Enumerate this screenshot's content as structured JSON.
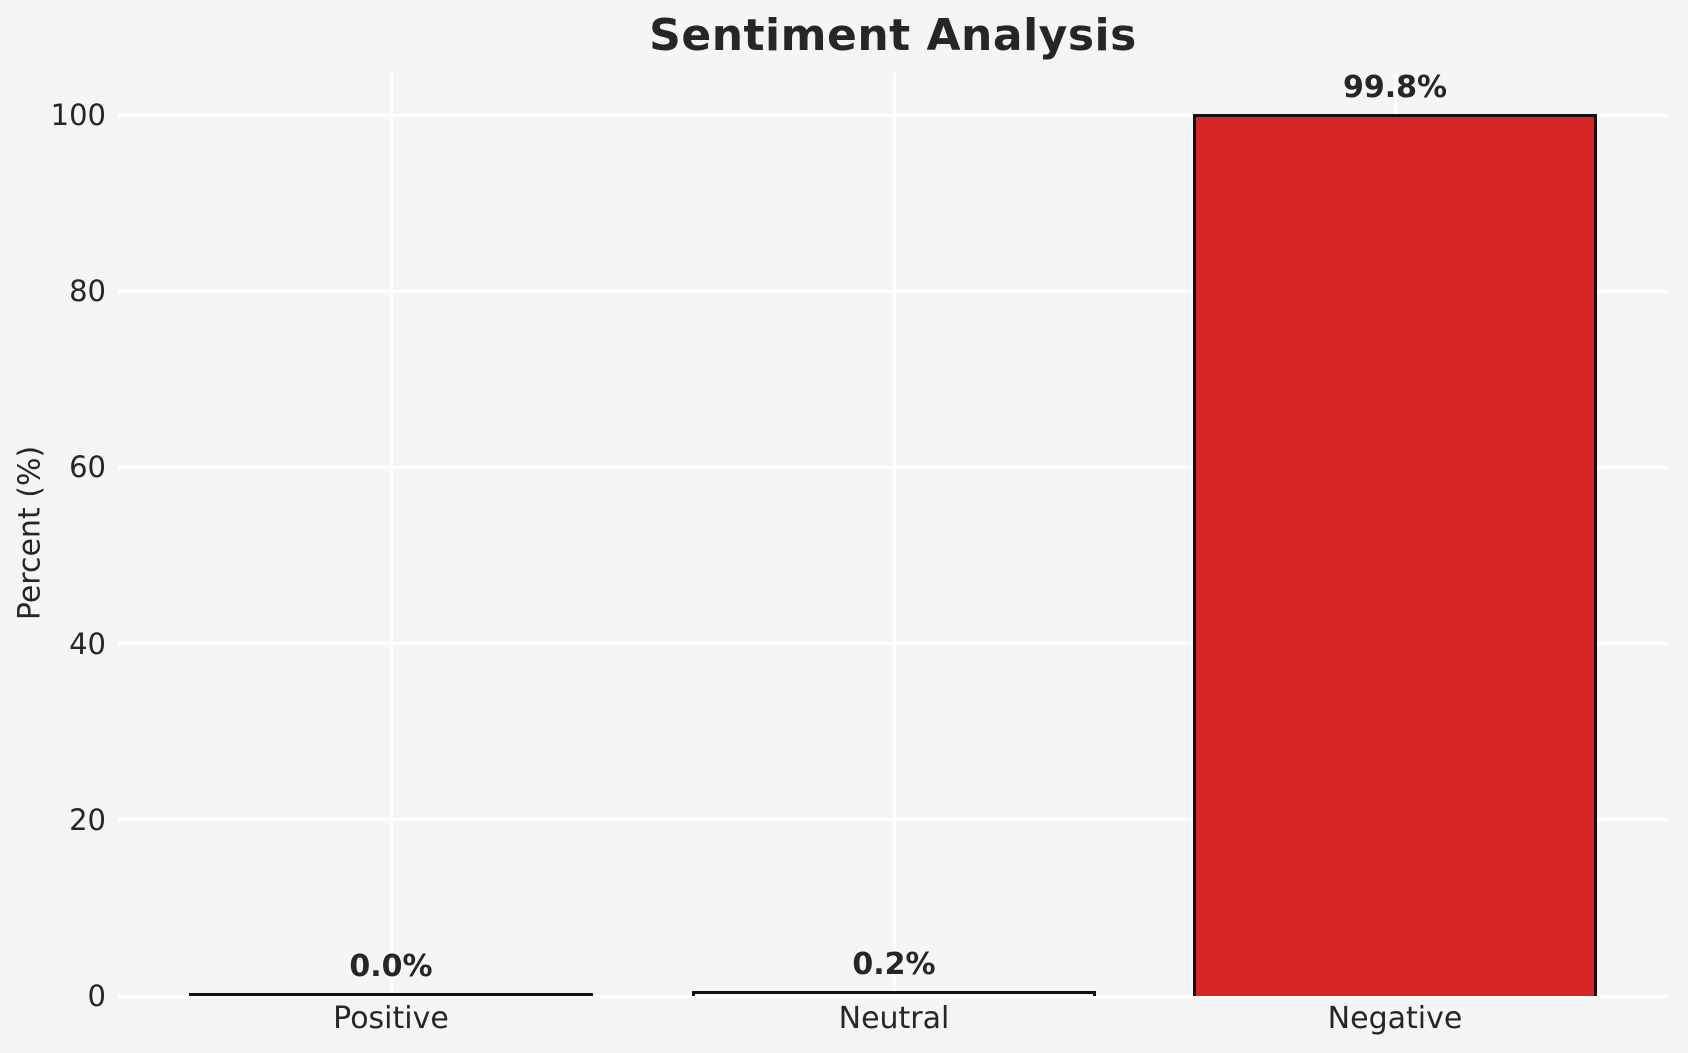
{
  "chart_data": {
    "type": "bar",
    "title": "Sentiment Analysis",
    "xlabel": "",
    "ylabel": "Percent (%)",
    "categories": [
      "Positive",
      "Neutral",
      "Negative"
    ],
    "values": [
      0.0,
      0.2,
      99.8
    ],
    "bar_labels": [
      "0.0%",
      "0.2%",
      "99.8%"
    ],
    "bar_fill_colors": [
      null,
      null,
      "#d62728"
    ],
    "bar_edge_color": "#111111",
    "ylim": [
      0,
      100
    ],
    "y_ticks": [
      0,
      20,
      40,
      60,
      80,
      100
    ],
    "grid": "on",
    "grid_color": "#ffffff",
    "background_color": "#f5f5f5",
    "legend": "none"
  }
}
